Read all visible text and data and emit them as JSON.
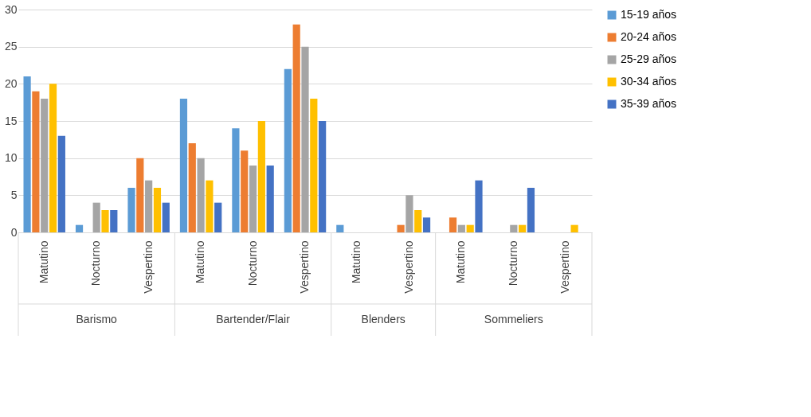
{
  "chart_data": {
    "type": "bar",
    "categories": [
      "Matutino",
      "Nocturno",
      "Vespertino",
      "Matutino",
      "Nocturno",
      "Vespertino",
      "Matutino",
      "Vespertino",
      "Matutino",
      "Nocturno",
      "Vespertino"
    ],
    "series": [
      {
        "name": "15-19 años",
        "color": "#5b9bd5",
        "values": [
          21,
          1,
          6,
          18,
          14,
          22,
          1,
          0,
          0,
          0,
          0
        ]
      },
      {
        "name": "20-24 años",
        "color": "#ed7d31",
        "values": [
          19,
          0,
          10,
          12,
          11,
          28,
          0,
          1,
          2,
          0,
          0
        ]
      },
      {
        "name": "25-29 años",
        "color": "#a5a5a5",
        "values": [
          18,
          4,
          7,
          10,
          9,
          25,
          0,
          5,
          1,
          1,
          0
        ]
      },
      {
        "name": "30-34 años",
        "color": "#ffc000",
        "values": [
          20,
          3,
          6,
          7,
          15,
          18,
          0,
          3,
          1,
          1,
          1
        ]
      },
      {
        "name": "35-39 años",
        "color": "#4472c4",
        "values": [
          13,
          3,
          4,
          4,
          9,
          15,
          0,
          2,
          7,
          6,
          0
        ]
      }
    ],
    "annotations": [
      "Barismo",
      "Bartender/Flair",
      "Blenders",
      "Sommeliers"
    ],
    "ylim": [
      0,
      30
    ],
    "yticks": [
      0,
      5,
      10,
      15,
      20,
      25,
      30
    ],
    "grid": "y",
    "legend": "right"
  }
}
